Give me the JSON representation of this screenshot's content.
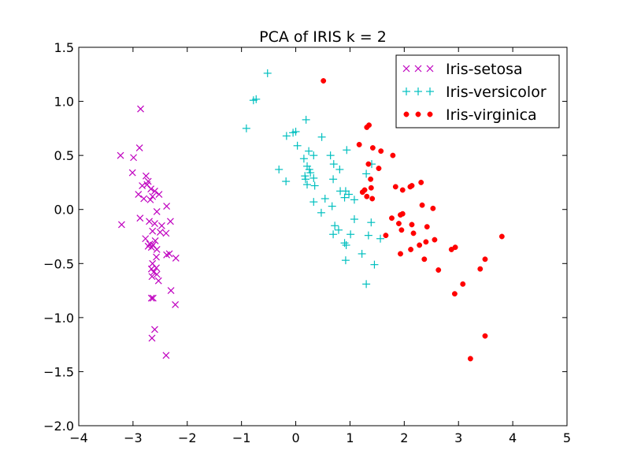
{
  "chart_data": {
    "type": "scatter",
    "title": "PCA of IRIS k = 2",
    "xlabel": "",
    "ylabel": "",
    "xlim": [
      -4,
      5
    ],
    "ylim": [
      -2.0,
      1.5
    ],
    "xticks": [
      -4,
      -3,
      -2,
      -1,
      0,
      1,
      2,
      3,
      4,
      5
    ],
    "xtick_labels": [
      "−4",
      "−3",
      "−2",
      "−1",
      "0",
      "1",
      "2",
      "3",
      "4",
      "5"
    ],
    "yticks": [
      1.5,
      1.0,
      0.5,
      0.0,
      -0.5,
      -1.0,
      -1.5,
      -2.0
    ],
    "ytick_labels": [
      "1.5",
      "1.0",
      "0.5",
      "0.0",
      "−0.5",
      "−1.0",
      "−1.5",
      "−2.0"
    ],
    "grid": false,
    "legend_position": "top-right",
    "series": [
      {
        "name": "Iris-setosa",
        "marker": "x",
        "color": "#bf00bf",
        "points": [
          [
            -2.86,
            0.93
          ],
          [
            -2.88,
            0.57
          ],
          [
            -3.23,
            0.5
          ],
          [
            -2.99,
            0.48
          ],
          [
            -3.01,
            0.34
          ],
          [
            -2.76,
            0.31
          ],
          [
            -2.72,
            0.26
          ],
          [
            -2.83,
            0.22
          ],
          [
            -2.74,
            0.23
          ],
          [
            -2.67,
            0.19
          ],
          [
            -2.6,
            0.17
          ],
          [
            -2.52,
            0.14
          ],
          [
            -2.9,
            0.14
          ],
          [
            -2.64,
            0.12
          ],
          [
            -2.8,
            0.1
          ],
          [
            -2.68,
            0.09
          ],
          [
            -2.38,
            0.03
          ],
          [
            -2.56,
            -0.02
          ],
          [
            -2.87,
            -0.08
          ],
          [
            -2.7,
            -0.11
          ],
          [
            -2.31,
            -0.11
          ],
          [
            -2.6,
            -0.13
          ],
          [
            -3.21,
            -0.14
          ],
          [
            -2.47,
            -0.15
          ],
          [
            -2.64,
            -0.2
          ],
          [
            -2.5,
            -0.21
          ],
          [
            -2.39,
            -0.22
          ],
          [
            -2.77,
            -0.27
          ],
          [
            -2.59,
            -0.29
          ],
          [
            -2.69,
            -0.32
          ],
          [
            -2.63,
            -0.33
          ],
          [
            -2.72,
            -0.34
          ],
          [
            -2.66,
            -0.35
          ],
          [
            -2.56,
            -0.37
          ],
          [
            -2.33,
            -0.41
          ],
          [
            -2.38,
            -0.42
          ],
          [
            -2.57,
            -0.44
          ],
          [
            -2.21,
            -0.45
          ],
          [
            -2.64,
            -0.5
          ],
          [
            -2.57,
            -0.54
          ],
          [
            -2.66,
            -0.55
          ],
          [
            -2.62,
            -0.58
          ],
          [
            -2.56,
            -0.6
          ],
          [
            -2.65,
            -0.62
          ],
          [
            -2.53,
            -0.66
          ],
          [
            -2.3,
            -0.75
          ],
          [
            -2.66,
            -0.82
          ],
          [
            -2.63,
            -0.82
          ],
          [
            -2.22,
            -0.88
          ],
          [
            -2.6,
            -1.11
          ],
          [
            -2.65,
            -1.19
          ],
          [
            -2.39,
            -1.35
          ]
        ]
      },
      {
        "name": "Iris-versicolor",
        "marker": "+",
        "color": "#00bfbf",
        "points": [
          [
            -0.52,
            1.26
          ],
          [
            -0.73,
            1.02
          ],
          [
            -0.78,
            1.01
          ],
          [
            0.19,
            0.83
          ],
          [
            -0.91,
            0.75
          ],
          [
            0.0,
            0.72
          ],
          [
            -0.05,
            0.71
          ],
          [
            -0.17,
            0.68
          ],
          [
            0.48,
            0.67
          ],
          [
            0.03,
            0.59
          ],
          [
            0.94,
            0.55
          ],
          [
            0.24,
            0.54
          ],
          [
            0.33,
            0.5
          ],
          [
            0.64,
            0.5
          ],
          [
            0.15,
            0.47
          ],
          [
            0.7,
            0.42
          ],
          [
            0.21,
            0.4
          ],
          [
            1.4,
            0.42
          ],
          [
            0.25,
            0.37
          ],
          [
            -0.31,
            0.37
          ],
          [
            0.81,
            0.37
          ],
          [
            0.27,
            0.34
          ],
          [
            1.3,
            0.33
          ],
          [
            0.17,
            0.31
          ],
          [
            0.33,
            0.29
          ],
          [
            0.18,
            0.28
          ],
          [
            0.69,
            0.28
          ],
          [
            -0.18,
            0.26
          ],
          [
            0.21,
            0.23
          ],
          [
            0.35,
            0.22
          ],
          [
            0.82,
            0.17
          ],
          [
            0.92,
            0.17
          ],
          [
            0.9,
            0.11
          ],
          [
            0.54,
            0.1
          ],
          [
            0.98,
            0.14
          ],
          [
            1.08,
            0.09
          ],
          [
            0.33,
            0.07
          ],
          [
            0.67,
            0.03
          ],
          [
            0.47,
            -0.03
          ],
          [
            1.08,
            -0.09
          ],
          [
            1.39,
            -0.12
          ],
          [
            0.72,
            -0.15
          ],
          [
            0.79,
            -0.19
          ],
          [
            0.69,
            -0.23
          ],
          [
            1.01,
            -0.23
          ],
          [
            1.34,
            -0.24
          ],
          [
            1.56,
            -0.27
          ],
          [
            0.9,
            -0.31
          ],
          [
            0.93,
            -0.33
          ],
          [
            1.22,
            -0.41
          ],
          [
            0.92,
            -0.47
          ],
          [
            1.45,
            -0.51
          ],
          [
            1.3,
            -0.69
          ]
        ]
      },
      {
        "name": "Iris-virginica",
        "marker": "o",
        "color": "#ff0000",
        "points": [
          [
            0.51,
            1.19
          ],
          [
            1.35,
            0.78
          ],
          [
            1.31,
            0.76
          ],
          [
            1.17,
            0.6
          ],
          [
            1.42,
            0.57
          ],
          [
            1.57,
            0.54
          ],
          [
            1.79,
            0.5
          ],
          [
            1.34,
            0.42
          ],
          [
            1.53,
            0.38
          ],
          [
            1.38,
            0.28
          ],
          [
            2.31,
            0.25
          ],
          [
            1.84,
            0.21
          ],
          [
            2.14,
            0.22
          ],
          [
            2.11,
            0.21
          ],
          [
            1.39,
            0.2
          ],
          [
            1.97,
            0.18
          ],
          [
            1.23,
            0.16
          ],
          [
            1.27,
            0.18
          ],
          [
            1.31,
            0.12
          ],
          [
            1.41,
            0.1
          ],
          [
            2.33,
            0.04
          ],
          [
            2.53,
            0.01
          ],
          [
            1.97,
            -0.04
          ],
          [
            1.93,
            -0.05
          ],
          [
            1.77,
            -0.08
          ],
          [
            1.9,
            -0.13
          ],
          [
            2.14,
            -0.14
          ],
          [
            2.42,
            -0.16
          ],
          [
            1.95,
            -0.19
          ],
          [
            2.17,
            -0.22
          ],
          [
            1.66,
            -0.24
          ],
          [
            3.8,
            -0.25
          ],
          [
            2.56,
            -0.28
          ],
          [
            2.4,
            -0.3
          ],
          [
            2.28,
            -0.33
          ],
          [
            2.94,
            -0.35
          ],
          [
            2.87,
            -0.37
          ],
          [
            2.12,
            -0.37
          ],
          [
            1.93,
            -0.41
          ],
          [
            3.49,
            -0.46
          ],
          [
            2.37,
            -0.46
          ],
          [
            2.63,
            -0.56
          ],
          [
            3.4,
            -0.55
          ],
          [
            3.08,
            -0.69
          ],
          [
            2.93,
            -0.78
          ],
          [
            3.49,
            -1.17
          ],
          [
            3.22,
            -1.38
          ]
        ]
      }
    ]
  }
}
